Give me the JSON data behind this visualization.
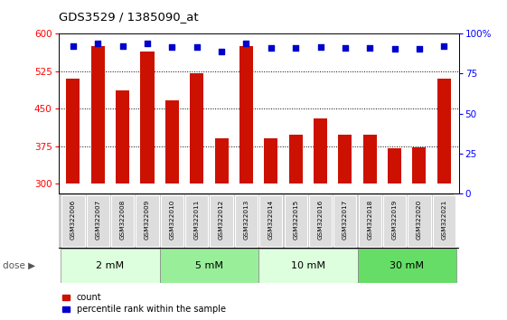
{
  "title": "GDS3529 / 1385090_at",
  "samples": [
    "GSM322006",
    "GSM322007",
    "GSM322008",
    "GSM322009",
    "GSM322010",
    "GSM322011",
    "GSM322012",
    "GSM322013",
    "GSM322014",
    "GSM322015",
    "GSM322016",
    "GSM322017",
    "GSM322018",
    "GSM322019",
    "GSM322020",
    "GSM322021"
  ],
  "counts": [
    510,
    575,
    487,
    565,
    467,
    520,
    390,
    575,
    390,
    398,
    430,
    398,
    398,
    370,
    372,
    510
  ],
  "percentiles_left": [
    575,
    580,
    575,
    580,
    573,
    573,
    565,
    580,
    571,
    571,
    573,
    571,
    571,
    569,
    569,
    575
  ],
  "dose_groups": [
    {
      "label": "2 mM",
      "start": 0,
      "end": 3,
      "color": "#ddffdd"
    },
    {
      "label": "5 mM",
      "start": 4,
      "end": 7,
      "color": "#99ee99"
    },
    {
      "label": "10 mM",
      "start": 8,
      "end": 11,
      "color": "#ddffdd"
    },
    {
      "label": "30 mM",
      "start": 12,
      "end": 15,
      "color": "#66dd66"
    }
  ],
  "bar_color": "#cc1100",
  "scatter_color": "#0000cc",
  "ylim_left": [
    280,
    600
  ],
  "ylim_right": [
    0,
    100
  ],
  "yticks_left": [
    300,
    375,
    450,
    525,
    600
  ],
  "yticks_right": [
    0,
    25,
    50,
    75,
    100
  ],
  "grid_lines": [
    375,
    450,
    525
  ],
  "bar_bottom": 300,
  "plot_bg": "#ffffff"
}
